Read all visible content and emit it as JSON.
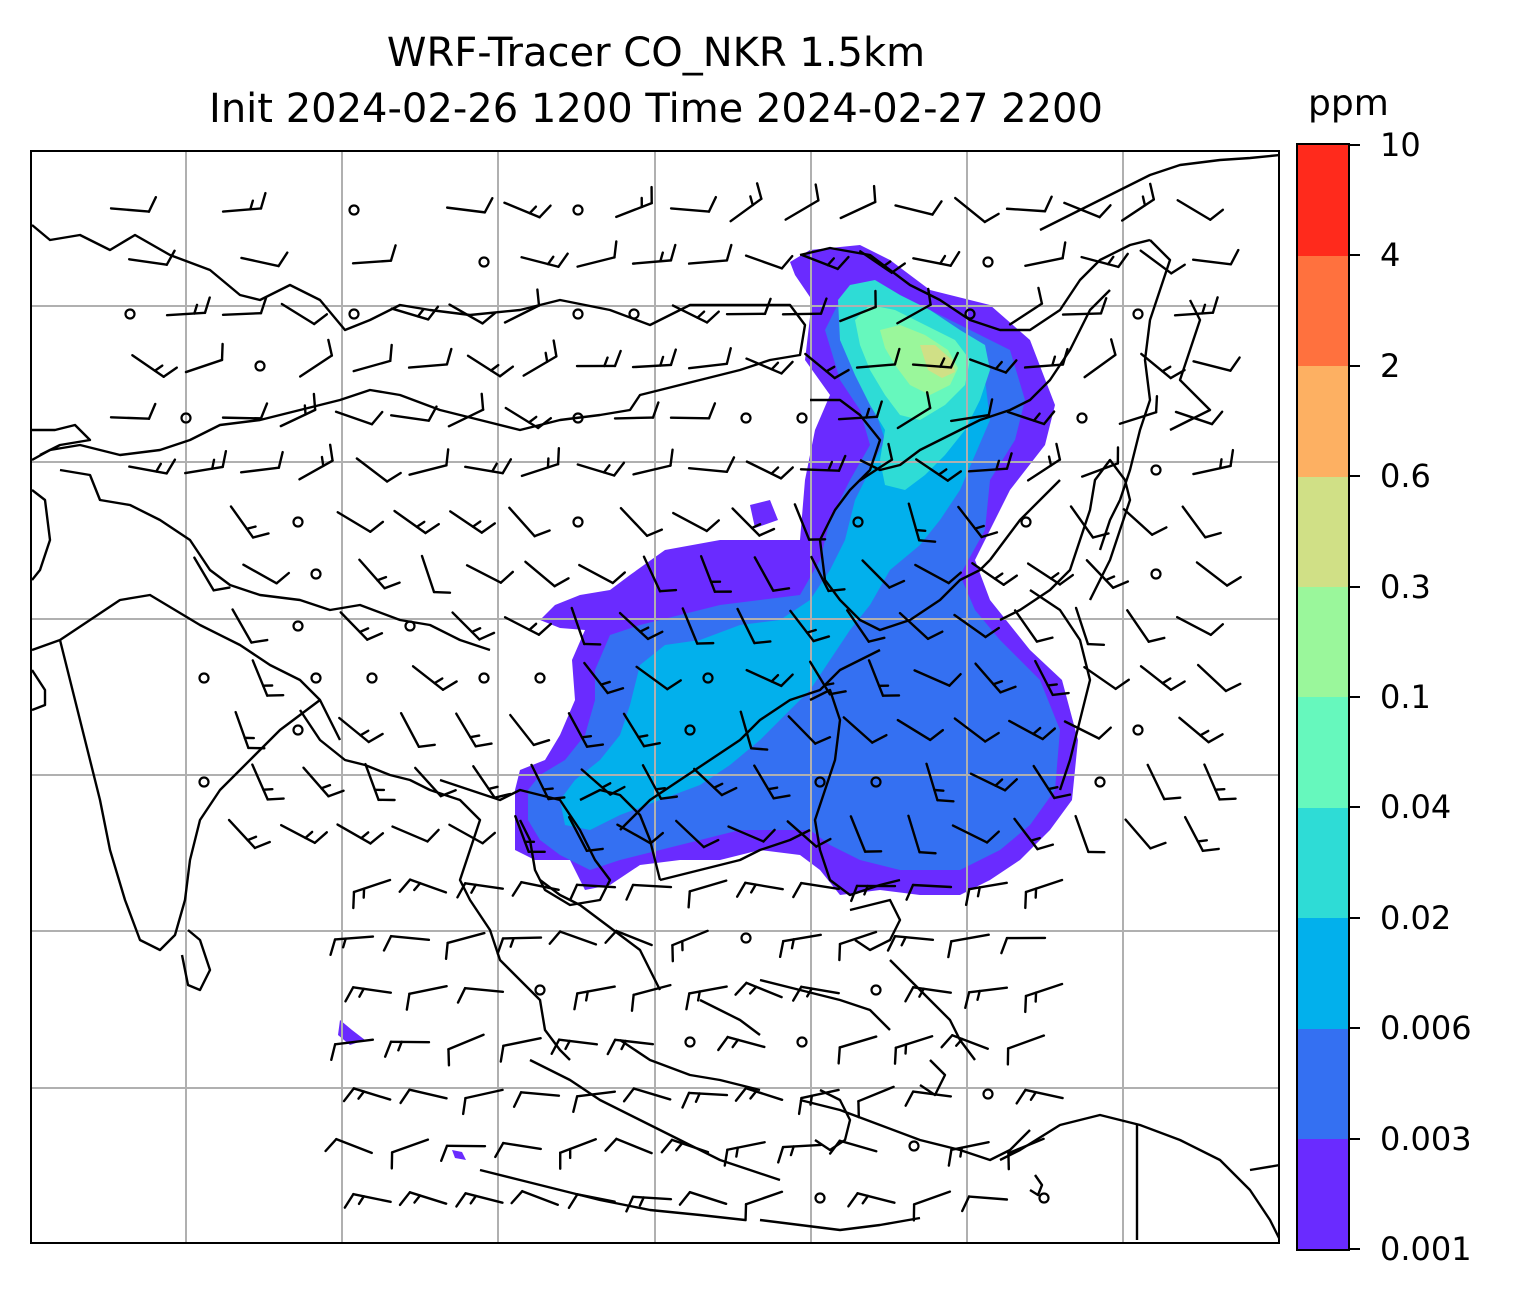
{
  "title_line1": "WRF-Tracer CO_NKR 1.5km",
  "title_line2": "Init 2024-02-26 1200 Time 2024-02-27 2200",
  "colorbar": {
    "unit": "ppm",
    "levels": [
      "0.001",
      "0.003",
      "0.006",
      "0.02",
      "0.04",
      "0.1",
      "0.3",
      "0.6",
      "2",
      "4",
      "10"
    ],
    "colors": [
      "#6a2bff",
      "#3470f2",
      "#02b0ec",
      "#2edcd6",
      "#66f8bd",
      "#9af79b",
      "#d0e086",
      "#fdb062",
      "#ff713e",
      "#ff2a1c"
    ]
  },
  "map": {
    "grid": "on",
    "coastline_color": "#000000",
    "gridline_color": "#b0b0b0",
    "wind_barbs": "black"
  }
}
